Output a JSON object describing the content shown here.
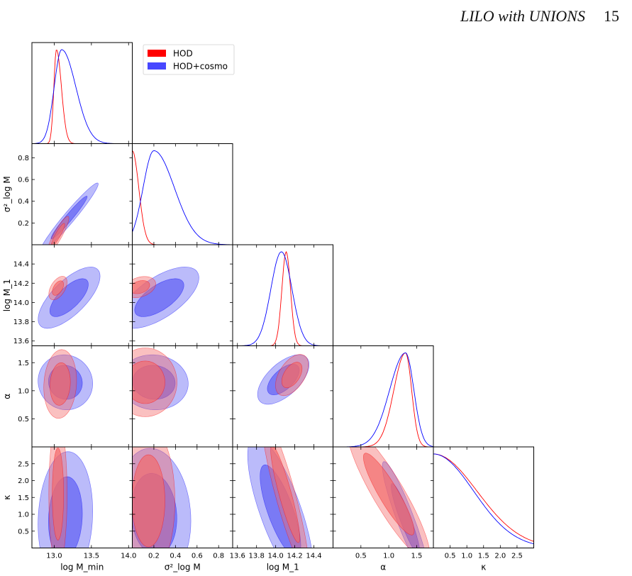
{
  "header": {
    "title": "LILO with UNIONS",
    "page_number": "15"
  },
  "colors": {
    "hod": "#ff0000",
    "hod_cosmo": "#0000ff",
    "hod_fill": "#f26868",
    "hod_cosmo_fill": "#5c5cf2"
  },
  "chart_data": {
    "type": "corner",
    "params": [
      "log M_min",
      "σ²_log M",
      "log M_1",
      "α",
      "κ"
    ],
    "axis_labels": [
      "log M_min",
      "σ²_log M",
      "log M_1",
      "α",
      "κ"
    ],
    "ranges": [
      [
        12.7,
        14.05
      ],
      [
        0.0,
        0.93
      ],
      [
        13.55,
        14.6
      ],
      [
        0.0,
        1.8
      ],
      [
        0.0,
        3.0
      ]
    ],
    "ticks": [
      [
        13.0,
        13.5,
        14.0
      ],
      [
        0.2,
        0.4,
        0.6,
        0.8
      ],
      [
        13.6,
        13.8,
        14.0,
        14.2,
        14.4
      ],
      [
        0.5,
        1.0,
        1.5
      ],
      [
        0.5,
        1.0,
        1.5,
        2.0,
        2.5
      ]
    ],
    "tick_labels": [
      [
        "13.0",
        "13.5",
        "14.0"
      ],
      [
        "0.2",
        "0.4",
        "0.6",
        "0.8"
      ],
      [
        "13.6",
        "13.8",
        "14.0",
        "14.2",
        "14.4"
      ],
      [
        "0.5",
        "1.0",
        "1.5"
      ],
      [
        "0.5",
        "1.0",
        "1.5",
        "2.0",
        "2.5"
      ]
    ],
    "legend": {
      "placement": "top",
      "entries": [
        "HOD",
        "HOD+cosmo"
      ]
    },
    "series": [
      {
        "name": "HOD",
        "color": "#ff0000",
        "marginals": [
          {
            "type": "gaussian",
            "mu": 13.03,
            "sigma": 0.035,
            "skew": "right"
          },
          {
            "type": "half",
            "mu": 0.0,
            "sigma": 0.06
          },
          {
            "type": "gaussian",
            "mu": 14.11,
            "sigma": 0.045
          },
          {
            "type": "gaussian",
            "mu": 1.3,
            "sigma": 0.11,
            "skew": "left"
          },
          {
            "type": "half",
            "mu": 0.0,
            "sigma": 1.3
          }
        ],
        "contours": [
          {
            "pair": [
              0,
              1
            ],
            "mean": [
              13.05,
              0.09
            ],
            "sd": [
              0.06,
              0.07
            ],
            "rho": 0.9
          },
          {
            "pair": [
              0,
              2
            ],
            "mean": [
              13.05,
              14.15
            ],
            "sd": [
              0.05,
              0.05
            ],
            "rho": 0.5
          },
          {
            "pair": [
              1,
              2
            ],
            "mean": [
              0.07,
              14.16
            ],
            "sd": [
              0.06,
              0.045
            ],
            "rho": 0.3
          },
          {
            "pair": [
              0,
              3
            ],
            "mean": [
              13.08,
              1.12
            ],
            "sd": [
              0.09,
              0.25
            ],
            "rho": 0.1
          },
          {
            "pair": [
              1,
              3
            ],
            "mean": [
              0.12,
              1.15
            ],
            "sd": [
              0.12,
              0.25
            ],
            "rho": 0.0
          },
          {
            "pair": [
              2,
              3
            ],
            "mean": [
              14.17,
              1.28
            ],
            "sd": [
              0.07,
              0.15
            ],
            "rho": 0.5
          },
          {
            "pair": [
              0,
              4
            ],
            "mean": [
              13.05,
              1.6
            ],
            "sd": [
              0.05,
              0.9
            ],
            "rho": 0.0
          },
          {
            "pair": [
              1,
              4
            ],
            "mean": [
              0.15,
              1.4
            ],
            "sd": [
              0.1,
              0.9
            ],
            "rho": 0.0
          },
          {
            "pair": [
              2,
              4
            ],
            "mean": [
              14.1,
              1.6
            ],
            "sd": [
              0.1,
              0.95
            ],
            "rho": -0.9
          },
          {
            "pair": [
              3,
              4
            ],
            "mean": [
              1.0,
              1.6
            ],
            "sd": [
              0.3,
              0.8
            ],
            "rho": -0.9
          }
        ]
      },
      {
        "name": "HOD+cosmo",
        "color": "#0000ff",
        "marginals": [
          {
            "type": "gaussian",
            "mu": 13.1,
            "sigma": 0.1,
            "skew": "right"
          },
          {
            "type": "gaussian",
            "mu": 0.2,
            "sigma": 0.1,
            "skew": "right"
          },
          {
            "type": "gaussian",
            "mu": 14.06,
            "sigma": 0.11
          },
          {
            "type": "gaussian",
            "mu": 1.3,
            "sigma": 0.15,
            "skew": "left"
          },
          {
            "type": "half",
            "mu": 0.0,
            "sigma": 1.2
          }
        ],
        "contours": [
          {
            "pair": [
              0,
              1
            ],
            "mean": [
              13.2,
              0.25
            ],
            "sd": [
              0.16,
              0.13
            ],
            "rho": 0.97
          },
          {
            "pair": [
              0,
              2
            ],
            "mean": [
              13.2,
              14.05
            ],
            "sd": [
              0.17,
              0.13
            ],
            "rho": 0.7
          },
          {
            "pair": [
              1,
              2
            ],
            "mean": [
              0.25,
              14.05
            ],
            "sd": [
              0.15,
              0.13
            ],
            "rho": 0.65
          },
          {
            "pair": [
              0,
              3
            ],
            "mean": [
              13.15,
              1.15
            ],
            "sd": [
              0.15,
              0.2
            ],
            "rho": -0.05
          },
          {
            "pair": [
              1,
              3
            ],
            "mean": [
              0.2,
              1.15
            ],
            "sd": [
              0.13,
              0.2
            ],
            "rho": -0.05
          },
          {
            "pair": [
              2,
              3
            ],
            "mean": [
              14.08,
              1.2
            ],
            "sd": [
              0.11,
              0.18
            ],
            "rho": 0.6
          },
          {
            "pair": [
              0,
              4
            ],
            "mean": [
              13.15,
              0.9
            ],
            "sd": [
              0.15,
              0.8
            ],
            "rho": 0.1
          },
          {
            "pair": [
              1,
              4
            ],
            "mean": [
              0.2,
              1.0
            ],
            "sd": [
              0.14,
              0.8
            ],
            "rho": -0.1
          },
          {
            "pair": [
              2,
              4
            ],
            "mean": [
              14.05,
              1.1
            ],
            "sd": [
              0.14,
              0.9
            ],
            "rho": -0.75
          },
          {
            "pair": [
              3,
              4
            ],
            "mean": [
              1.3,
              0.85
            ],
            "sd": [
              0.17,
              0.7
            ],
            "rho": -0.92
          }
        ]
      }
    ]
  }
}
